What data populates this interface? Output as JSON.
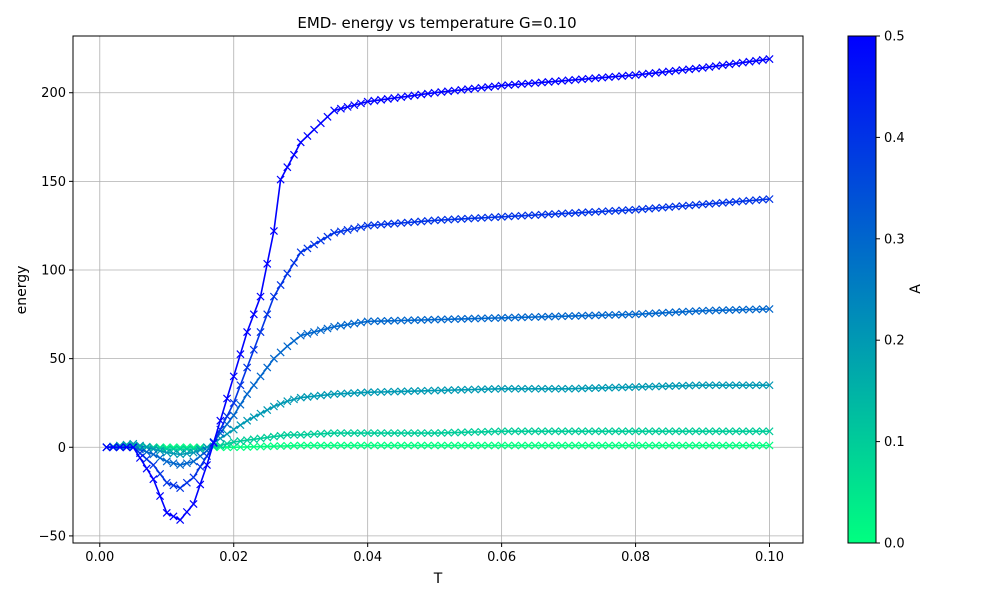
{
  "chart_data": {
    "type": "line",
    "title": "EMD- energy vs temperature G=0.10",
    "xlabel": "T",
    "ylabel": "energy",
    "xlim": [
      -0.004,
      0.105
    ],
    "ylim": [
      -54,
      232
    ],
    "xticks": [
      0.0,
      0.02,
      0.04,
      0.06,
      0.08,
      0.1
    ],
    "xtick_labels": [
      "0.00",
      "0.02",
      "0.04",
      "0.06",
      "0.08",
      "0.10"
    ],
    "yticks": [
      -50,
      0,
      50,
      100,
      150,
      200
    ],
    "ytick_labels": [
      "−50",
      "0",
      "50",
      "100",
      "150",
      "200"
    ],
    "grid": true,
    "marker": "x",
    "t_range": [
      0.001,
      0.1
    ],
    "points_per_series": 100,
    "colormap": "winter",
    "colorbar": {
      "label": "A",
      "range": [
        0.0,
        0.5
      ],
      "ticks": [
        "0.0",
        "0.1",
        "0.2",
        "0.3",
        "0.4",
        "0.5"
      ],
      "color_low": "#00ff80",
      "color_high": "#0000ff"
    },
    "series": [
      {
        "A": 0.5,
        "color": "#0000ff",
        "x": [
          0.001,
          0.005,
          0.008,
          0.01,
          0.012,
          0.014,
          0.016,
          0.018,
          0.02,
          0.022,
          0.024,
          0.026,
          0.027,
          0.03,
          0.035,
          0.04,
          0.05,
          0.06,
          0.07,
          0.08,
          0.09,
          0.1
        ],
        "y": [
          0,
          0,
          -18,
          -37,
          -41,
          -32,
          -10,
          15,
          40,
          65,
          85,
          122,
          151,
          172,
          190,
          195,
          200,
          204,
          207,
          210,
          214,
          219
        ]
      },
      {
        "A": 0.4,
        "color": "#0033e6",
        "x": [
          0.001,
          0.005,
          0.008,
          0.01,
          0.012,
          0.014,
          0.016,
          0.018,
          0.02,
          0.022,
          0.024,
          0.026,
          0.028,
          0.03,
          0.035,
          0.04,
          0.05,
          0.06,
          0.07,
          0.08,
          0.09,
          0.1
        ],
        "y": [
          0,
          0,
          -10,
          -20,
          -23,
          -17,
          -5,
          10,
          25,
          45,
          65,
          85,
          98,
          110,
          121,
          125,
          128,
          130,
          132,
          134,
          137,
          140
        ]
      },
      {
        "A": 0.3,
        "color": "#0066cc",
        "x": [
          0.001,
          0.005,
          0.008,
          0.01,
          0.012,
          0.014,
          0.016,
          0.018,
          0.02,
          0.022,
          0.024,
          0.026,
          0.028,
          0.03,
          0.035,
          0.04,
          0.05,
          0.06,
          0.07,
          0.08,
          0.09,
          0.1
        ],
        "y": [
          0,
          0,
          -4,
          -8,
          -10,
          -8,
          -2,
          8,
          18,
          30,
          40,
          50,
          57,
          63,
          68,
          71,
          72,
          73,
          74,
          75,
          77,
          78
        ]
      },
      {
        "A": 0.2,
        "color": "#0099b3",
        "x": [
          0.001,
          0.005,
          0.008,
          0.01,
          0.012,
          0.014,
          0.016,
          0.018,
          0.02,
          0.022,
          0.024,
          0.026,
          0.028,
          0.03,
          0.035,
          0.04,
          0.05,
          0.06,
          0.07,
          0.08,
          0.09,
          0.1
        ],
        "y": [
          0,
          2,
          -1,
          -3,
          -4,
          -3,
          0,
          5,
          10,
          15,
          19,
          23,
          26,
          28,
          30,
          31,
          32,
          33,
          33,
          34,
          35,
          35
        ]
      },
      {
        "A": 0.1,
        "color": "#00cc99",
        "x": [
          0.001,
          0.005,
          0.008,
          0.01,
          0.012,
          0.014,
          0.016,
          0.018,
          0.02,
          0.022,
          0.024,
          0.026,
          0.028,
          0.03,
          0.035,
          0.04,
          0.05,
          0.06,
          0.07,
          0.08,
          0.09,
          0.1
        ],
        "y": [
          0,
          1,
          0,
          -1,
          -1,
          -1,
          0,
          1,
          3,
          4,
          5,
          6,
          7,
          7,
          8,
          8,
          8,
          9,
          9,
          9,
          9,
          9
        ]
      },
      {
        "A": 0.0,
        "color": "#00ff80",
        "x": [
          0.001,
          0.005,
          0.01,
          0.015,
          0.02,
          0.03,
          0.04,
          0.06,
          0.08,
          0.1
        ],
        "y": [
          0,
          0,
          0,
          0,
          0,
          1,
          1,
          1,
          1,
          1
        ]
      }
    ]
  }
}
